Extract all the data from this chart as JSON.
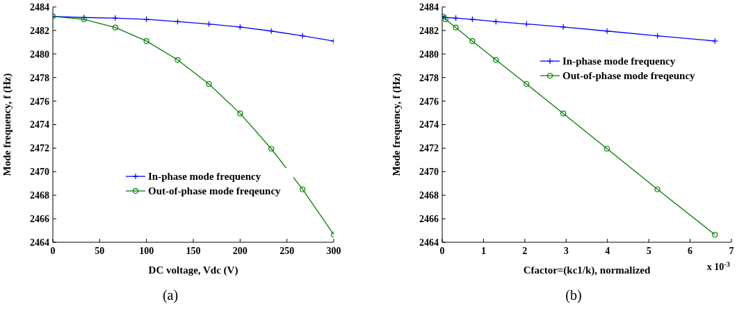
{
  "chart_data": [
    {
      "type": "line",
      "xlabel": "DC voltage, Vdc (V)",
      "ylabel": "Mode frequency, f (Hz)",
      "x": [
        0,
        33.3,
        66.7,
        100,
        133.3,
        166.7,
        200,
        233.3,
        266.7,
        300
      ],
      "series": [
        {
          "name": "In-phase mode frequency",
          "color": "#0000ff",
          "marker": "cross",
          "values": [
            2483.2,
            2483.1,
            2483.05,
            2482.95,
            2482.75,
            2482.55,
            2482.3,
            2481.95,
            2481.55,
            2481.1
          ]
        },
        {
          "name": "Out-of-phase mode freqeuncy",
          "color": "#008000",
          "marker": "circle",
          "values": [
            2483.2,
            2482.95,
            2482.25,
            2481.1,
            2479.5,
            2477.45,
            2474.95,
            2471.95,
            2468.5,
            2464.65
          ]
        }
      ],
      "xlim": [
        0,
        300
      ],
      "xticks": [
        0,
        50,
        100,
        150,
        200,
        250,
        300
      ],
      "ylim": [
        2464,
        2484
      ],
      "yticks": [
        2464,
        2466,
        2468,
        2470,
        2472,
        2474,
        2476,
        2478,
        2480,
        2482,
        2484
      ],
      "legend": "center right",
      "grid": false,
      "line_style": "solid",
      "annotations": [
        "(a)"
      ]
    },
    {
      "type": "line",
      "xlabel": "Cfactor=(kc1/k), normalized",
      "ylabel": "Mode frequency, f (Hz)",
      "x": [
        0,
        0.08,
        0.33,
        0.73,
        1.3,
        2.04,
        2.93,
        3.99,
        5.21,
        6.6
      ],
      "series": [
        {
          "name": "In-phase mode frequency",
          "color": "#0000ff",
          "marker": "cross",
          "values": [
            2483.2,
            2483.1,
            2483.05,
            2482.95,
            2482.75,
            2482.55,
            2482.3,
            2481.95,
            2481.55,
            2481.1
          ]
        },
        {
          "name": "Out-of-phase mode freqeuncy",
          "color": "#008000",
          "marker": "circle",
          "values": [
            2483.2,
            2482.95,
            2482.25,
            2481.1,
            2479.5,
            2477.45,
            2474.95,
            2471.95,
            2468.5,
            2464.65
          ]
        }
      ],
      "xlim": [
        0,
        7
      ],
      "xticks": [
        0,
        1,
        2,
        3,
        4,
        5,
        6,
        7
      ],
      "ylim": [
        2464,
        2484
      ],
      "yticks": [
        2464,
        2466,
        2468,
        2470,
        2472,
        2474,
        2476,
        2478,
        2480,
        2482,
        2484
      ],
      "legend": "top right",
      "grid": false,
      "line_style": "solid",
      "annotations": [
        "x 10$^{-3}$",
        "(b)"
      ]
    }
  ]
}
